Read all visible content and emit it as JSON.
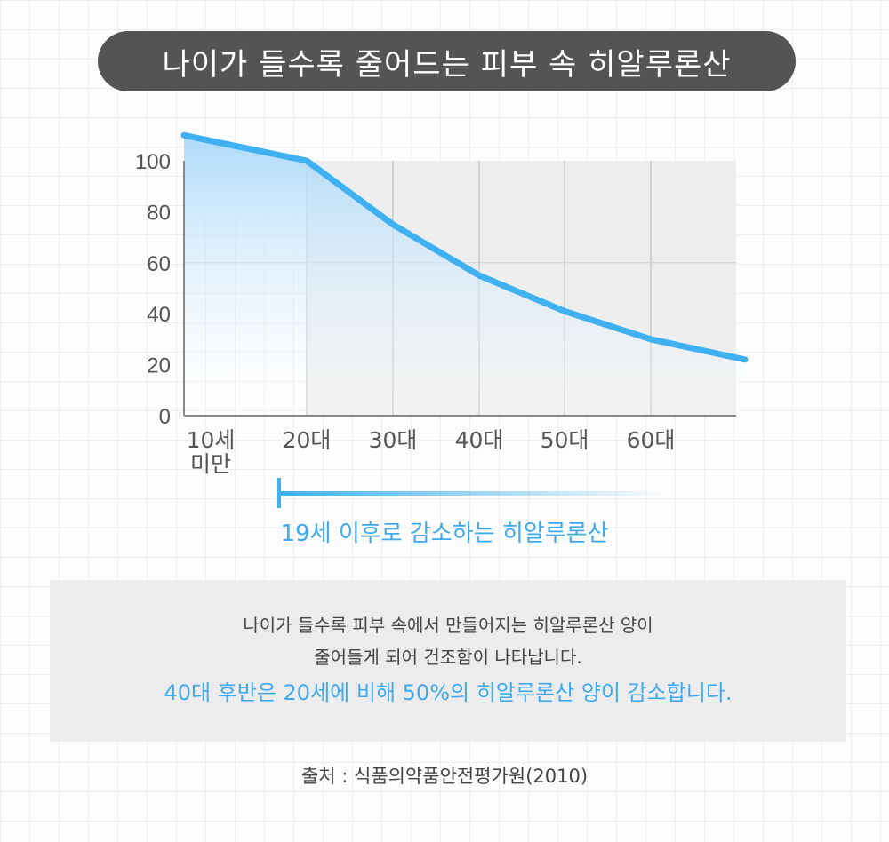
{
  "title": "나이가 들수록 줄어드는 피부 속 히알루론산",
  "chart_data": {
    "type": "line",
    "categories": [
      "10세\n미만",
      "20대",
      "30대",
      "40대",
      "50대",
      "60대",
      ""
    ],
    "series": [
      {
        "values": [
          110,
          100,
          75,
          55,
          41,
          30,
          22
        ]
      }
    ],
    "ylim": [
      0,
      100
    ],
    "yticks": [
      0,
      20,
      40,
      60,
      80,
      100
    ],
    "grid": true,
    "line_color": "#3fb0f0",
    "fill_color": "#bfe3fb",
    "plot_bg": "#eeeeee"
  },
  "annotation": "19세 이후로 감소하는 히알루론산",
  "description": {
    "line1": "나이가 들수록 피부 속에서 만들어지는 히알루론산 양이",
    "line2": "줄어들게 되어 건조함이 나타납니다.",
    "highlight": "40대 후반은 20세에 비해 50%의 히알루론산 양이 감소합니다."
  },
  "source": "출처 : 식품의약품안전평가원(2010)"
}
